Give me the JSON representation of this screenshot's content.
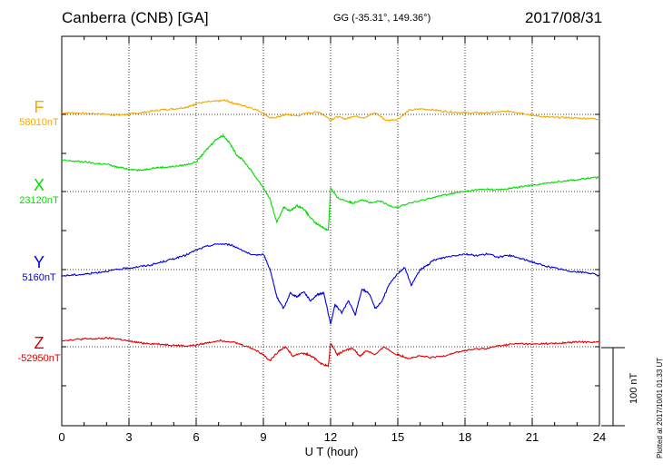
{
  "header": {
    "station": "Canberra (CNB)  [GA]",
    "coordinates": "GG (-35.31°, 149.36°)",
    "date": "2017/08/31"
  },
  "footer": {
    "plotted": "Plotted at 2017/10/01 01:33 UT",
    "scale_label": "100 nT"
  },
  "chart_data": {
    "type": "line",
    "xlabel": "U T (hour)",
    "ylabel": "",
    "xlim": [
      0,
      24
    ],
    "xticks": [
      "0",
      "3",
      "6",
      "9",
      "12",
      "15",
      "18",
      "21",
      "24"
    ],
    "scale_bar_nT": 100,
    "grid": true,
    "series": [
      {
        "name": "F",
        "baseline_label": "58010nT",
        "baseline_nT": 58010,
        "color": "#f5a800",
        "x": [
          0,
          0.5,
          1,
          1.5,
          2,
          2.5,
          3,
          3.5,
          4,
          4.5,
          5,
          5.5,
          5.8,
          6,
          6.5,
          7,
          7.3,
          7.6,
          8,
          8.5,
          9,
          9.3,
          9.7,
          10,
          10.5,
          11,
          11.5,
          12,
          12.3,
          12.7,
          13,
          13.5,
          14,
          14.5,
          15,
          15.5,
          16,
          16.5,
          17,
          17.5,
          18,
          18.5,
          19,
          19.5,
          20,
          20.5,
          21,
          21.5,
          22,
          22.5,
          23,
          23.5,
          24
        ],
        "y": [
          2,
          2,
          1,
          1,
          0,
          -1,
          0,
          2,
          4,
          6,
          7,
          9,
          11,
          14,
          16,
          17,
          18,
          15,
          12,
          8,
          2,
          -5,
          -3,
          0,
          -2,
          2,
          3,
          -7,
          -3,
          -6,
          -2,
          -4,
          2,
          -8,
          -6,
          5,
          7,
          6,
          4,
          3,
          2,
          2,
          2,
          3,
          4,
          2,
          -1,
          -3,
          -4,
          -4,
          -5,
          -5,
          -6
        ]
      },
      {
        "name": "X",
        "baseline_label": "23120nT",
        "baseline_nT": 23120,
        "color": "#00dd00",
        "x": [
          0,
          0.5,
          1,
          1.5,
          2,
          2.5,
          3,
          3.5,
          4,
          4.5,
          5,
          5.5,
          6,
          6.3,
          6.6,
          6.9,
          7.2,
          7.5,
          7.8,
          8.1,
          8.5,
          9,
          9.3,
          9.6,
          9.9,
          10.2,
          10.5,
          10.8,
          11,
          11.3,
          11.6,
          11.9,
          12,
          12.3,
          12.7,
          13,
          13.4,
          13.8,
          14.2,
          14.6,
          15,
          15.5,
          16,
          16.5,
          17,
          17.5,
          18,
          18.5,
          19,
          19.5,
          20,
          20.5,
          21,
          21.5,
          22,
          22.5,
          23,
          23.5,
          24
        ],
        "y": [
          40,
          39,
          38,
          36,
          35,
          31,
          29,
          27,
          30,
          31,
          32,
          34,
          38,
          48,
          58,
          67,
          72,
          62,
          47,
          40,
          25,
          5,
          -10,
          -40,
          -20,
          -25,
          -18,
          -22,
          -30,
          -40,
          -45,
          -50,
          5,
          -8,
          -12,
          -15,
          -10,
          -15,
          -12,
          -18,
          -20,
          -15,
          -12,
          -8,
          -5,
          -2,
          0,
          2,
          3,
          2,
          4,
          6,
          8,
          10,
          12,
          14,
          15,
          17,
          18
        ]
      },
      {
        "name": "Y",
        "baseline_label": "5160nT",
        "baseline_nT": 5160,
        "color": "#0000dd",
        "x": [
          0,
          0.5,
          1,
          1.5,
          2,
          2.5,
          3,
          3.5,
          4,
          4.5,
          5,
          5.5,
          6,
          6.5,
          7,
          7.5,
          8,
          8.5,
          9,
          9.3,
          9.6,
          9.9,
          10.2,
          10.5,
          10.8,
          11.1,
          11.4,
          11.7,
          12,
          12.2,
          12.5,
          12.8,
          13.1,
          13.4,
          13.7,
          14,
          14.3,
          14.6,
          15,
          15.3,
          15.6,
          16,
          16.3,
          16.6,
          17,
          17.5,
          18,
          18.5,
          19,
          19.5,
          20,
          20.5,
          21,
          21.5,
          22,
          22.5,
          23,
          23.5,
          24
        ],
        "y": [
          -8,
          -7,
          -6,
          -4,
          -2,
          0,
          2,
          4,
          6,
          10,
          14,
          18,
          25,
          30,
          33,
          32,
          26,
          18,
          20,
          0,
          -35,
          -50,
          -30,
          -35,
          -28,
          -40,
          -32,
          -30,
          -70,
          -45,
          -55,
          -40,
          -58,
          -25,
          -30,
          -50,
          -40,
          -20,
          -5,
          3,
          -20,
          0,
          5,
          12,
          15,
          18,
          20,
          18,
          20,
          16,
          18,
          14,
          10,
          5,
          2,
          -1,
          -3,
          -4,
          -8
        ]
      },
      {
        "name": "Z",
        "baseline_label": "-52950nT",
        "baseline_nT": -52950,
        "color": "#dd0000",
        "x": [
          0,
          0.5,
          1,
          1.5,
          2,
          2.5,
          3,
          3.5,
          4,
          4.5,
          5,
          5.5,
          6,
          6.5,
          7,
          7.5,
          8,
          8.5,
          9,
          9.3,
          9.7,
          10,
          10.3,
          10.7,
          11,
          11.3,
          11.6,
          11.9,
          12,
          12.3,
          12.6,
          13,
          13.3,
          13.6,
          14,
          14.4,
          14.8,
          15.2,
          15.5,
          16,
          16.5,
          17,
          17.5,
          18,
          18.5,
          19,
          19.5,
          20,
          20.5,
          21,
          21.5,
          22,
          22.5,
          23,
          23.5,
          24
        ],
        "y": [
          8,
          9,
          10,
          10,
          11,
          10,
          7,
          5,
          4,
          3,
          2,
          1,
          2,
          5,
          8,
          7,
          3,
          -2,
          -10,
          -18,
          -5,
          0,
          -12,
          -8,
          -10,
          -15,
          -22,
          -25,
          5,
          -10,
          -5,
          -2,
          -12,
          -5,
          -10,
          0,
          -8,
          -12,
          -15,
          -12,
          -14,
          -12,
          -8,
          -5,
          -3,
          -2,
          1,
          3,
          4,
          3,
          4,
          4,
          5,
          6,
          6,
          6
        ]
      }
    ]
  }
}
